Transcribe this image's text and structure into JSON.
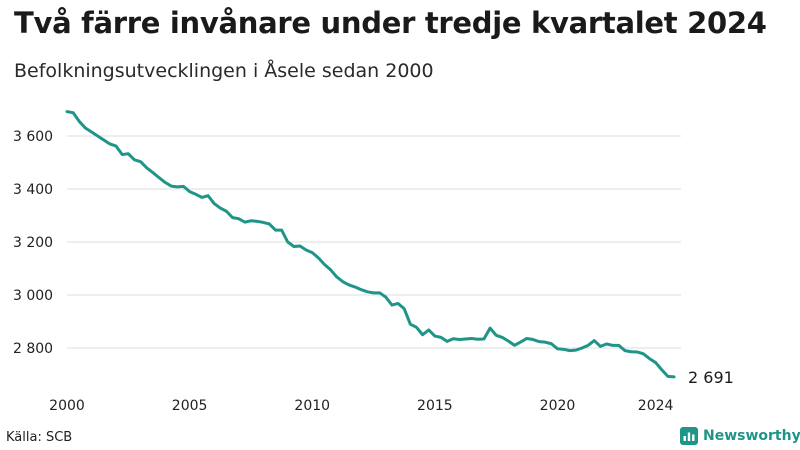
{
  "header": {
    "title": "Två färre invånare under tredje kvartalet 2024",
    "subtitle": "Befolkningsutvecklingen i Åsele sedan 2000"
  },
  "footer": {
    "source": "Källa: SCB",
    "brand": "Newsworthy",
    "brand_icon": "newsworthy-logo-icon"
  },
  "colors": {
    "line": "#1f9488",
    "grid": "#dddddd",
    "brand": "#1f9488"
  },
  "chart_data": {
    "type": "line",
    "title": "Två färre invånare under tredje kvartalet 2024",
    "subtitle": "Befolkningsutvecklingen i Åsele sedan 2000",
    "xlabel": "",
    "ylabel": "",
    "xlim": [
      2000,
      2024.75
    ],
    "ylim": [
      2690,
      3700
    ],
    "grid": true,
    "legend": "none",
    "x_ticks": [
      2000,
      2005,
      2010,
      2015,
      2020,
      2024
    ],
    "x_tick_labels": [
      "2000",
      "2005",
      "2010",
      "2015",
      "2020",
      "2024"
    ],
    "y_ticks": [
      2800,
      3000,
      3200,
      3400,
      3600
    ],
    "y_tick_labels": [
      "2 800",
      "3 000",
      "3 200",
      "3 400",
      "3 600"
    ],
    "end_label": "2 691",
    "series": [
      {
        "x": [
          2000.0,
          2000.25,
          2000.5,
          2000.75,
          2001.0,
          2001.25,
          2001.5,
          2001.75,
          2002.0,
          2002.25,
          2002.5,
          2002.75,
          2003.0,
          2003.25,
          2003.5,
          2003.75,
          2004.0,
          2004.25,
          2004.5,
          2004.75,
          2005.0,
          2005.25,
          2005.5,
          2005.75,
          2006.0,
          2006.25,
          2006.5,
          2006.75,
          2007.0,
          2007.25,
          2007.5,
          2007.75,
          2008.0,
          2008.25,
          2008.5,
          2008.75,
          2009.0,
          2009.25,
          2009.5,
          2009.75,
          2010.0,
          2010.25,
          2010.5,
          2010.75,
          2011.0,
          2011.25,
          2011.5,
          2011.75,
          2012.0,
          2012.25,
          2012.5,
          2012.75,
          2013.0,
          2013.25,
          2013.5,
          2013.75,
          2014.0,
          2014.25,
          2014.5,
          2014.75,
          2015.0,
          2015.25,
          2015.5,
          2015.75,
          2016.0,
          2016.25,
          2016.5,
          2016.75,
          2017.0,
          2017.25,
          2017.5,
          2017.75,
          2018.0,
          2018.25,
          2018.5,
          2018.75,
          2019.0,
          2019.25,
          2019.5,
          2019.75,
          2020.0,
          2020.25,
          2020.5,
          2020.75,
          2021.0,
          2021.25,
          2021.5,
          2021.75,
          2022.0,
          2022.25,
          2022.5,
          2022.75,
          2023.0,
          2023.25,
          2023.5,
          2023.75,
          2024.0,
          2024.25,
          2024.5,
          2024.75
        ],
        "values": [
          3692,
          3688,
          3655,
          3630,
          3615,
          3600,
          3585,
          3570,
          3562,
          3530,
          3533,
          3510,
          3503,
          3480,
          3462,
          3443,
          3425,
          3411,
          3408,
          3410,
          3390,
          3380,
          3368,
          3375,
          3345,
          3328,
          3316,
          3292,
          3288,
          3275,
          3280,
          3278,
          3274,
          3268,
          3245,
          3245,
          3200,
          3183,
          3185,
          3170,
          3160,
          3140,
          3115,
          3095,
          3068,
          3050,
          3038,
          3030,
          3020,
          3012,
          3008,
          3008,
          2992,
          2962,
          2968,
          2948,
          2890,
          2878,
          2850,
          2868,
          2845,
          2840,
          2825,
          2835,
          2832,
          2834,
          2836,
          2833,
          2834,
          2875,
          2848,
          2840,
          2826,
          2810,
          2823,
          2836,
          2832,
          2824,
          2822,
          2816,
          2797,
          2795,
          2790,
          2792,
          2800,
          2810,
          2828,
          2806,
          2815,
          2810,
          2810,
          2790,
          2786,
          2785,
          2778,
          2760,
          2745,
          2718,
          2693,
          2691
        ]
      }
    ]
  }
}
